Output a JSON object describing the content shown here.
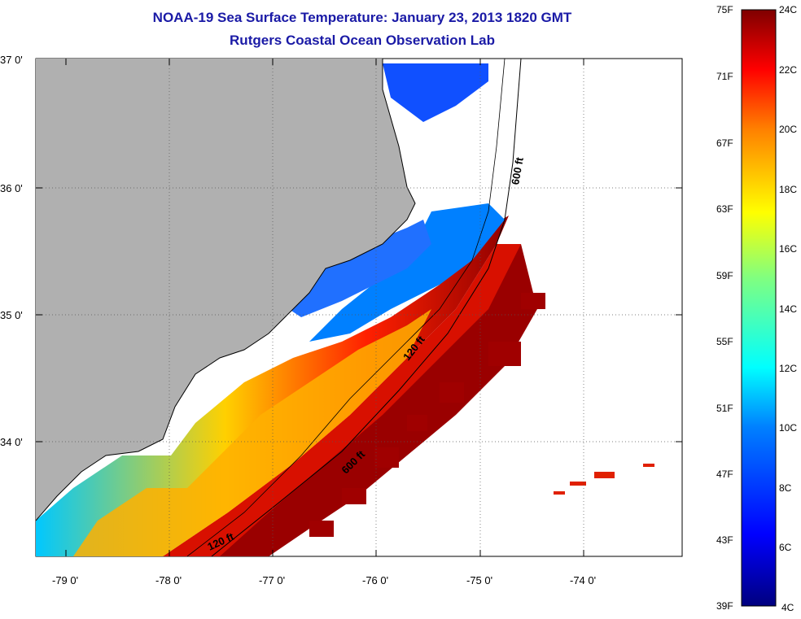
{
  "header": {
    "title": "NOAA-19 Sea Surface Temperature:  January 23, 2013 1820 GMT",
    "subtitle": "Rutgers Coastal Ocean Observation Lab"
  },
  "map": {
    "lon_ticks": [
      "-79 0'",
      "-78 0'",
      "-77 0'",
      "-76 0'",
      "-75 0'",
      "-74 0'"
    ],
    "lat_ticks": [
      "37 0'",
      "36 0'",
      "35 0'",
      "34 0'"
    ],
    "contours": [
      "600 ft",
      "120 ft",
      "600 ft",
      "120 ft"
    ],
    "land_color": "#b0b0b0",
    "cloud_color": "#ffffff"
  },
  "colorbar": {
    "fahrenheit": [
      "75F",
      "71F",
      "67F",
      "63F",
      "59F",
      "55F",
      "51F",
      "47F",
      "43F",
      "39F"
    ],
    "celsius": [
      "24C",
      "22C",
      "20C",
      "18C",
      "16C",
      "14C",
      "12C",
      "10C",
      "8C",
      "6C",
      "4C"
    ],
    "range_c": [
      4,
      24
    ],
    "colors": [
      "#00007f",
      "#0000ff",
      "#0080ff",
      "#00ffff",
      "#80ff80",
      "#ffff00",
      "#ff8000",
      "#ff0000",
      "#7f0000"
    ]
  }
}
